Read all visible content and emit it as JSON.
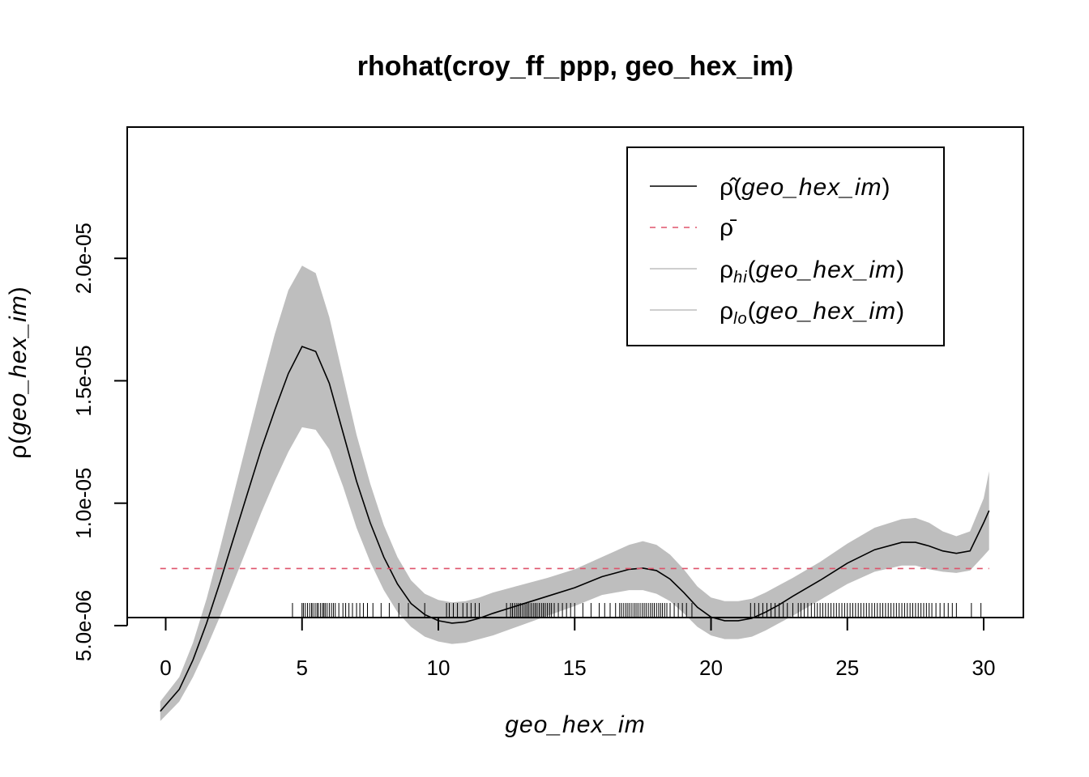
{
  "chart_data": {
    "type": "line",
    "title": "rhohat(croy_ff_ppp, geo_hex_im)",
    "xlabel": "geo_hex_im",
    "ylabel_symbol": "ρ",
    "ylabel_arg": "geo_hex_im",
    "xlim": [
      -0.2,
      30.2
    ],
    "ylim": [
      1e-06,
      2.05e-05
    ],
    "x_ticks": [
      0,
      5,
      10,
      15,
      20,
      25,
      30
    ],
    "x_tick_labels": [
      "0",
      "5",
      "10",
      "15",
      "20",
      "25",
      "30"
    ],
    "y_ticks": [
      5e-06,
      1e-05,
      1.5e-05,
      2e-05
    ],
    "y_tick_labels": [
      "5.0e-06",
      "1.0e-05",
      "1.5e-05",
      "2.0e-05"
    ],
    "legend_position": "top-right",
    "rho_bar": 7.33e-06,
    "x": [
      -0.2,
      0.5,
      1,
      1.5,
      2,
      2.5,
      3,
      3.5,
      4,
      4.5,
      5,
      5.5,
      6,
      6.5,
      7,
      7.5,
      8,
      8.5,
      9,
      9.5,
      10,
      10.5,
      11,
      11.5,
      12,
      13,
      14,
      15,
      16,
      17,
      17.5,
      18,
      18.5,
      19,
      19.5,
      20,
      20.5,
      21,
      21.5,
      22,
      22.5,
      23,
      24,
      25,
      26,
      27,
      27.5,
      28,
      28.5,
      29,
      29.5,
      30,
      30.2
    ],
    "series": [
      {
        "name": "ρ̂(geo_hex_im)",
        "style": "solid",
        "color": "#000000",
        "values": [
          1.5e-06,
          2.4e-06,
          3.6e-06,
          5.1e-06,
          6.8e-06,
          8.6e-06,
          1.04e-05,
          1.22e-05,
          1.38e-05,
          1.53e-05,
          1.64e-05,
          1.62e-05,
          1.49e-05,
          1.29e-05,
          1.09e-05,
          9.2e-06,
          7.8e-06,
          6.7e-06,
          5.9e-06,
          5.45e-06,
          5.2e-06,
          5.1e-06,
          5.15e-06,
          5.3e-06,
          5.5e-06,
          5.85e-06,
          6.2e-06,
          6.55e-06,
          7e-06,
          7.3e-06,
          7.35e-06,
          7.25e-06,
          6.9e-06,
          6.35e-06,
          5.75e-06,
          5.35e-06,
          5.2e-06,
          5.2e-06,
          5.3e-06,
          5.55e-06,
          5.85e-06,
          6.2e-06,
          6.85e-06,
          7.55e-06,
          8.1e-06,
          8.4e-06,
          8.4e-06,
          8.25e-06,
          8.05e-06,
          7.95e-06,
          8.05e-06,
          9.2e-06,
          9.7e-06
        ]
      },
      {
        "name": "ρ̄",
        "style": "dashed",
        "color": "#DF536B"
      },
      {
        "name": "ρhi(geo_hex_im)",
        "style": "band-upper",
        "color": "#BEBEBE",
        "values": [
          1.9e-06,
          2.9e-06,
          4.3e-06,
          6.1e-06,
          8.2e-06,
          1.04e-05,
          1.26e-05,
          1.48e-05,
          1.69e-05,
          1.87e-05,
          1.97e-05,
          1.94e-05,
          1.76e-05,
          1.52e-05,
          1.28e-05,
          1.08e-05,
          9.1e-06,
          7.8e-06,
          6.85e-06,
          6.3e-06,
          6.05e-06,
          5.95e-06,
          6e-06,
          6.15e-06,
          6.35e-06,
          6.65e-06,
          6.95e-06,
          7.3e-06,
          7.8e-06,
          8.3e-06,
          8.45e-06,
          8.3e-06,
          7.9e-06,
          7.3e-06,
          6.6e-06,
          6.15e-06,
          6e-06,
          6e-06,
          6.1e-06,
          6.35e-06,
          6.65e-06,
          6.95e-06,
          7.6e-06,
          8.35e-06,
          9e-06,
          9.35e-06,
          9.4e-06,
          9.2e-06,
          8.85e-06,
          8.65e-06,
          8.85e-06,
          1.02e-05,
          1.13e-05
        ]
      },
      {
        "name": "ρlo(geo_hex_im)",
        "style": "band-lower",
        "color": "#BEBEBE",
        "values": [
          1.1e-06,
          1.9e-06,
          2.9e-06,
          4.1e-06,
          5.4e-06,
          6.8e-06,
          8.2e-06,
          9.6e-06,
          1.09e-05,
          1.21e-05,
          1.31e-05,
          1.3e-05,
          1.22e-05,
          1.07e-05,
          9e-06,
          7.6e-06,
          6.45e-06,
          5.55e-06,
          4.95e-06,
          4.55e-06,
          4.35e-06,
          4.25e-06,
          4.3e-06,
          4.45e-06,
          4.6e-06,
          5e-06,
          5.4e-06,
          5.8e-06,
          6.25e-06,
          6.45e-06,
          6.45e-06,
          6.3e-06,
          6e-06,
          5.5e-06,
          4.95e-06,
          4.6e-06,
          4.45e-06,
          4.45e-06,
          4.55e-06,
          4.8e-06,
          5.1e-06,
          5.4e-06,
          6.05e-06,
          6.7e-06,
          7.2e-06,
          7.45e-06,
          7.45e-06,
          7.3e-06,
          7.2e-06,
          7.15e-06,
          7.25e-06,
          7.85e-06,
          8.1e-06
        ]
      }
    ],
    "rug": [
      4.65,
      5.0,
      5.05,
      5.12,
      5.2,
      5.28,
      5.35,
      5.4,
      5.48,
      5.55,
      5.6,
      5.68,
      5.75,
      5.8,
      5.85,
      5.92,
      6.0,
      6.08,
      6.15,
      6.22,
      6.35,
      6.5,
      6.6,
      6.72,
      6.85,
      7.0,
      7.12,
      7.25,
      7.4,
      7.6,
      7.9,
      8.2,
      8.55,
      8.9,
      9.5,
      10.3,
      10.4,
      10.55,
      10.7,
      10.9,
      11.05,
      11.2,
      11.35,
      11.5,
      12.5,
      12.65,
      12.72,
      12.8,
      12.88,
      12.95,
      13.02,
      13.1,
      13.18,
      13.25,
      13.32,
      13.4,
      13.48,
      13.55,
      13.62,
      13.7,
      13.78,
      13.85,
      13.92,
      14.0,
      14.08,
      14.15,
      14.25,
      14.4,
      14.55,
      14.7,
      14.85,
      15.0,
      15.3,
      15.6,
      15.9,
      16.1,
      16.3,
      16.5,
      16.65,
      16.72,
      16.8,
      16.88,
      16.95,
      17.02,
      17.1,
      17.18,
      17.25,
      17.32,
      17.4,
      17.48,
      17.55,
      17.62,
      17.7,
      17.78,
      17.85,
      17.92,
      18.0,
      18.08,
      18.15,
      18.22,
      18.3,
      18.38,
      18.5,
      18.65,
      18.8,
      18.95,
      19.1,
      19.3,
      21.45,
      21.6,
      21.75,
      21.9,
      22.05,
      22.2,
      22.35,
      22.5,
      22.65,
      22.8,
      23.0,
      23.2,
      23.3,
      23.42,
      23.55,
      23.68,
      23.8,
      23.9,
      24.0,
      24.1,
      24.2,
      24.3,
      24.4,
      24.5,
      24.6,
      24.7,
      24.8,
      24.9,
      25.0,
      25.1,
      25.2,
      25.3,
      25.4,
      25.5,
      25.6,
      25.7,
      25.8,
      25.9,
      26.0,
      26.1,
      26.2,
      26.3,
      26.4,
      26.5,
      26.6,
      26.7,
      26.8,
      26.9,
      27.0,
      27.1,
      27.2,
      27.3,
      27.4,
      27.5,
      27.6,
      27.7,
      27.8,
      27.9,
      28.0,
      28.1,
      28.25,
      28.4,
      28.55,
      28.7,
      28.85,
      29.0,
      29.55,
      29.9
    ]
  },
  "legend": {
    "rhohat_symbol": "ρ̂",
    "rhohat_arg": "geo_hex_im",
    "rhobar_symbol": "ρ̄",
    "rhohi_symbol": "ρ",
    "rhohi_sub": "hi",
    "rhohi_arg": "geo_hex_im",
    "rholo_symbol": "ρ",
    "rholo_sub": "lo",
    "rholo_arg": "geo_hex_im"
  },
  "colors": {
    "band": "#BEBEBE",
    "estimate": "#000000",
    "mean": "#DF536B"
  }
}
